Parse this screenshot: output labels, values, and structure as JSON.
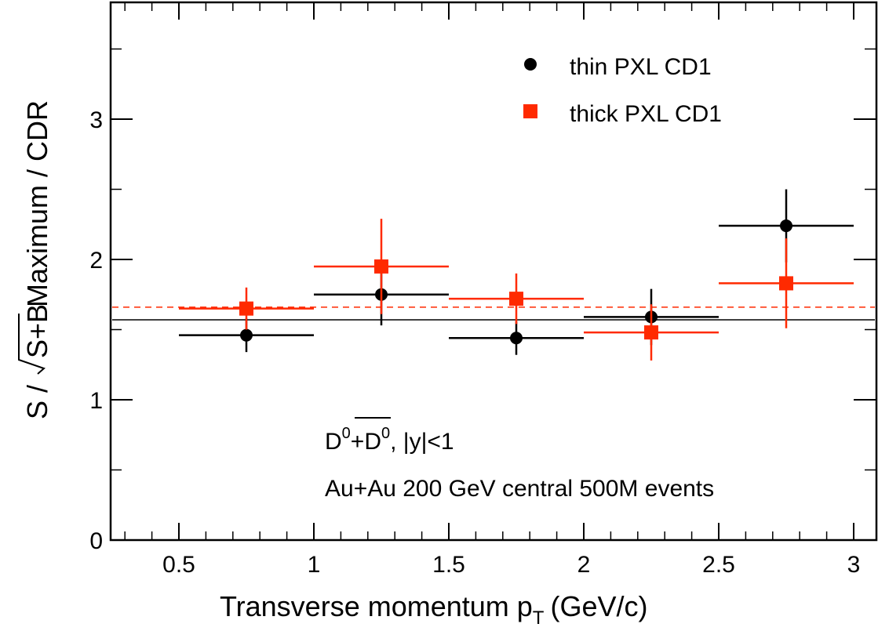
{
  "chart_data": {
    "type": "scatter",
    "xlabel_main": "Transverse momentum p",
    "xlabel_sub": "T",
    "xlabel_unit": "(GeV/c)",
    "ylabel_prefix": "S /",
    "ylabel_radicand": "S+B",
    "ylabel_suffix": "Maximum / CDR",
    "xlim": [
      0.25,
      3.0
    ],
    "ylim": [
      0,
      3.8
    ],
    "xticks": [
      0.5,
      1,
      1.5,
      2,
      2.5,
      3
    ],
    "xtick_labels": [
      "0.5",
      "1",
      "1.5",
      "2",
      "2.5",
      "3"
    ],
    "yticks": [
      0,
      1,
      2,
      3
    ],
    "ytick_labels": [
      "0",
      "1",
      "2",
      "3"
    ],
    "legend_position": "top-right",
    "annotation_line1_base": "D",
    "annotation_line1_sup1": "0",
    "annotation_line1_plus": "+",
    "annotation_line1_bar": "D",
    "annotation_line1_sup2": "0",
    "annotation_line1_rest": ", |y|<1",
    "annotation_line2": "Au+Au 200 GeV central 500M events",
    "series": [
      {
        "name": "thin PXL CD1",
        "color": "#000000",
        "marker": "circle",
        "x": [
          0.75,
          1.25,
          1.75,
          2.25,
          2.75
        ],
        "y": [
          1.46,
          1.75,
          1.44,
          1.59,
          2.24
        ],
        "xerr": [
          0.25,
          0.25,
          0.25,
          0.25,
          0.25
        ],
        "yerr": [
          0.12,
          0.22,
          0.12,
          0.2,
          0.26
        ],
        "reference_line": 1.57,
        "reference_style": "solid"
      },
      {
        "name": "thick PXL CD1",
        "color": "#ff2a00",
        "marker": "square",
        "x": [
          0.75,
          1.25,
          1.75,
          2.25,
          2.75
        ],
        "y": [
          1.65,
          1.95,
          1.72,
          1.48,
          1.83
        ],
        "xerr": [
          0.25,
          0.25,
          0.25,
          0.25,
          0.25
        ],
        "yerr": [
          0.15,
          0.34,
          0.18,
          0.2,
          0.32
        ],
        "reference_line": 1.66,
        "reference_style": "dashed"
      }
    ]
  }
}
